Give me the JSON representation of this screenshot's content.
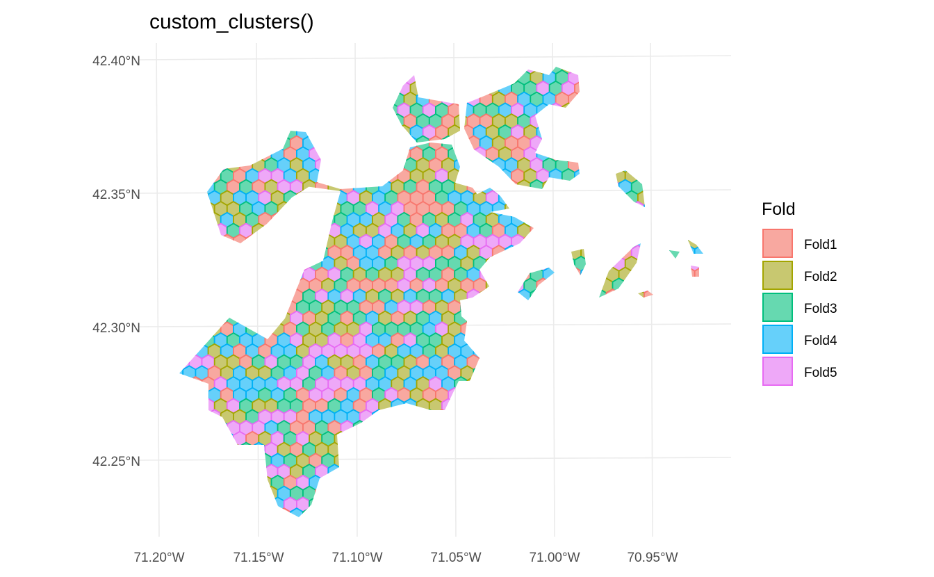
{
  "chart_data": {
    "type": "map",
    "title": "custom_clusters()",
    "x_ticks": [
      "71.20°W",
      "71.15°W",
      "71.10°W",
      "71.05°W",
      "71.00°W",
      "70.95°W"
    ],
    "x_values": [
      -71.2,
      -71.15,
      -71.1,
      -71.05,
      -71.0,
      -70.95
    ],
    "y_ticks": [
      "42.40°N",
      "42.35°N",
      "42.30°N",
      "42.25°N"
    ],
    "y_values": [
      42.4,
      42.35,
      42.3,
      42.25
    ],
    "xlim": [
      -71.205,
      -70.915
    ],
    "ylim": [
      42.223,
      42.402
    ],
    "grid": true,
    "legend": {
      "title": "Fold",
      "position": "right",
      "entries": [
        {
          "label": "Fold1",
          "fill": "#F8A8A0",
          "stroke": "#F8766D"
        },
        {
          "label": "Fold2",
          "fill": "#C8C870",
          "stroke": "#A3A500"
        },
        {
          "label": "Fold3",
          "fill": "#66D9B0",
          "stroke": "#00BF7D"
        },
        {
          "label": "Fold4",
          "fill": "#66D0FA",
          "stroke": "#00B0F6"
        },
        {
          "label": "Fold5",
          "fill": "#EEA8F8",
          "stroke": "#E76BF3"
        }
      ]
    }
  }
}
